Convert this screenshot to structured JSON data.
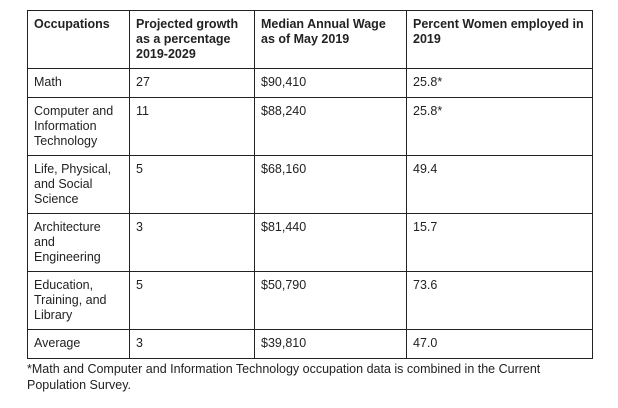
{
  "table": {
    "headers": [
      "Occupations",
      "Projected growth as a percentage 2019-2029",
      "Median Annual Wage as of May 2019",
      "Percent Women employed in 2019"
    ],
    "rows": [
      [
        "Math",
        "27",
        "$90,410",
        "25.8*"
      ],
      [
        "Computer and Information Technology",
        "11",
        "$88,240",
        "25.8*"
      ],
      [
        "Life, Physical, and Social Science",
        "5",
        "$68,160",
        "49.4"
      ],
      [
        "Architecture and Engineering",
        "3",
        "$81,440",
        "15.7"
      ],
      [
        "Education, Training, and Library",
        "5",
        "$50,790",
        "73.6"
      ],
      [
        "Average",
        "3",
        "$39,810",
        "47.0"
      ]
    ]
  },
  "footnote": "*Math and Computer and Information Technology occupation data is combined in the Current Population Survey."
}
